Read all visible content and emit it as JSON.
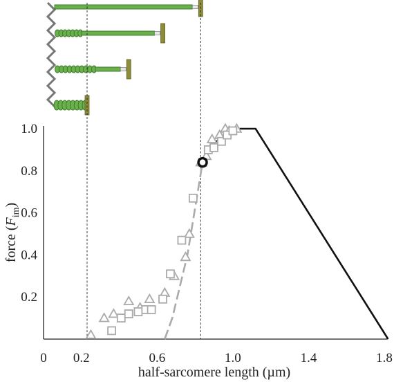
{
  "chart_data": {
    "type": "scatter",
    "xlabel": "half-sarcomere length (µm)",
    "ylabel_prefix": "force (",
    "ylabel_var": "F",
    "ylabel_sub": "im",
    "ylabel_suffix": ")",
    "xlim": [
      0,
      1.8
    ],
    "ylim": [
      0,
      1.0
    ],
    "x_ticks": [
      0,
      0.2,
      0.6,
      1.0,
      1.4,
      1.8
    ],
    "x_tick_labels": [
      "0",
      "0.2",
      "0.6",
      "1.0",
      "1.4",
      "1.8"
    ],
    "y_ticks": [
      0.2,
      0.4,
      0.6,
      0.8,
      1.0
    ],
    "y_tick_labels": [
      "0.2",
      "0.4",
      "0.6",
      "0.8",
      "1.0"
    ],
    "grid": false,
    "series": [
      {
        "marker": "triangle",
        "color": "#aaaaaa",
        "x": [
          0.25,
          0.32,
          0.37,
          0.45,
          0.51,
          0.56,
          0.64,
          0.69,
          0.75,
          0.77,
          0.83,
          0.86,
          0.89,
          0.93,
          0.96,
          0.98,
          1.02
        ],
        "y": [
          0.02,
          0.1,
          0.12,
          0.18,
          0.15,
          0.19,
          0.22,
          0.3,
          0.39,
          0.5,
          0.84,
          0.87,
          0.95,
          0.97,
          1.0,
          0.99,
          1.0
        ]
      },
      {
        "marker": "square",
        "color": "#aaaaaa",
        "x": [
          0.36,
          0.41,
          0.45,
          0.5,
          0.54,
          0.57,
          0.63,
          0.67,
          0.73,
          0.79,
          0.84,
          0.87,
          0.9,
          0.94,
          0.97,
          1.0
        ],
        "y": [
          0.04,
          0.1,
          0.12,
          0.13,
          0.14,
          0.14,
          0.19,
          0.31,
          0.47,
          0.67,
          0.84,
          0.9,
          0.91,
          0.94,
          0.97,
          0.99
        ]
      },
      {
        "style": "dashed-line",
        "color": "#aaaaaa",
        "x": [
          0.64,
          0.68,
          0.76,
          0.84,
          0.9,
          0.96,
          1.02
        ],
        "y": [
          0.0,
          0.1,
          0.4,
          0.84,
          0.92,
          0.97,
          1.0
        ]
      },
      {
        "style": "solid-line",
        "color": "#111111",
        "x": [
          0.84,
          0.9,
          1.0,
          1.12,
          1.82
        ],
        "y": [
          0.84,
          0.93,
          1.0,
          1.0,
          0.0
        ]
      },
      {
        "marker": "open-circle",
        "color": "#111111",
        "x": [
          0.84
        ],
        "y": [
          0.84
        ]
      }
    ],
    "reference_lines_x": [
      0.23,
      0.83
    ],
    "schematic_lengths": [
      0.83,
      0.63,
      0.45,
      0.23
    ],
    "schematic_coil_fraction": [
      0,
      0.25,
      0.55,
      1.0
    ]
  },
  "colors": {
    "axis": "#222222",
    "marker": "#aaaaaa",
    "model": "#111111",
    "filament": "#6ab04c",
    "filament_dark": "#3d7a2a",
    "z_line": "#777777",
    "m_line": "#8c8c3a"
  }
}
